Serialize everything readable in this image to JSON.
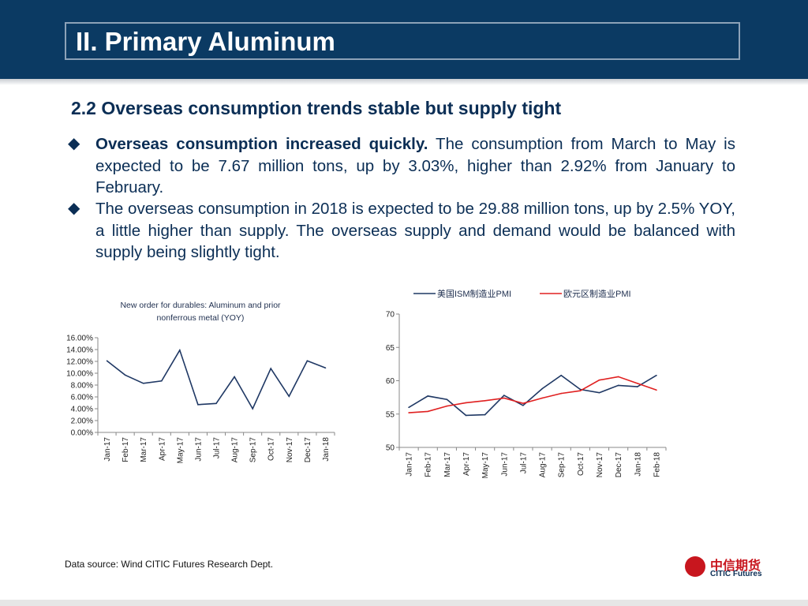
{
  "header": {
    "title": "II. Primary Aluminum"
  },
  "subtitle": "2.2 Overseas consumption  trends stable but supply tight",
  "bullets": [
    {
      "bold": "Overseas consumption increased quickly.",
      "text": " The consumption from March to May is expected to be 7.67 million tons, up by 3.03%, higher than 2.92% from January to February."
    },
    {
      "bold": "",
      "text": "The overseas consumption in 2018 is expected to be 29.88 million tons, up by 2.5% YOY, a little higher than supply. The overseas supply and demand would be balanced with supply being slightly tight."
    }
  ],
  "bullet_symbol": "◆",
  "chart_data": [
    {
      "type": "line",
      "title": "New order for durables: Aluminum and prior nonferrous metal  (YOY)",
      "title_lines": [
        "New order for durables: Aluminum and prior",
        "nonferrous metal  (YOY)"
      ],
      "categories": [
        "Jan-17",
        "Feb-17",
        "Mar-17",
        "Apr-17",
        "May-17",
        "Jun-17",
        "Jul-17",
        "Aug-17",
        "Sep-17",
        "Oct-17",
        "Nov-17",
        "Dec-17",
        "Jan-18"
      ],
      "series": [
        {
          "name": "YOY",
          "values": [
            12.1,
            9.7,
            8.3,
            8.7,
            13.9,
            4.7,
            4.9,
            9.4,
            4.0,
            10.8,
            6.1,
            12.1,
            10.9
          ]
        }
      ],
      "ylim": [
        0,
        16
      ],
      "ytick_values": [
        0,
        2,
        4,
        6,
        8,
        10,
        12,
        14,
        16
      ],
      "ytick_labels": [
        "0.00%",
        "2.00%",
        "4.00%",
        "6.00%",
        "8.00%",
        "10.00%",
        "12.00%",
        "14.00%",
        "16.00%"
      ],
      "color": "#1f3864"
    },
    {
      "type": "line",
      "title": "",
      "categories": [
        "Jan-17",
        "Feb-17",
        "Mar-17",
        "Apr-17",
        "May-17",
        "Jun-17",
        "Jul-17",
        "Aug-17",
        "Sep-17",
        "Oct-17",
        "Nov-17",
        "Dec-17",
        "Jan-18",
        "Feb-18"
      ],
      "series": [
        {
          "name": "美国ISM制造业PMI",
          "color": "#1f3864",
          "values": [
            56.0,
            57.7,
            57.2,
            54.8,
            54.9,
            57.8,
            56.3,
            58.8,
            60.8,
            58.7,
            58.2,
            59.3,
            59.1,
            60.8
          ]
        },
        {
          "name": "欧元区制造业PMI",
          "color": "#e02020",
          "values": [
            55.2,
            55.4,
            56.2,
            56.7,
            57.0,
            57.4,
            56.6,
            57.4,
            58.1,
            58.5,
            60.1,
            60.6,
            59.6,
            58.6
          ]
        }
      ],
      "ylim": [
        50,
        70
      ],
      "ytick_values": [
        50,
        55,
        60,
        65,
        70
      ],
      "ytick_labels": [
        "50",
        "55",
        "60",
        "65",
        "70"
      ],
      "legend": "top"
    }
  ],
  "footer": {
    "source": "Data source: Wind   CITIC Futures Research Dept."
  },
  "logo": {
    "cn": "中信期货",
    "en": "CITIC Futures"
  }
}
